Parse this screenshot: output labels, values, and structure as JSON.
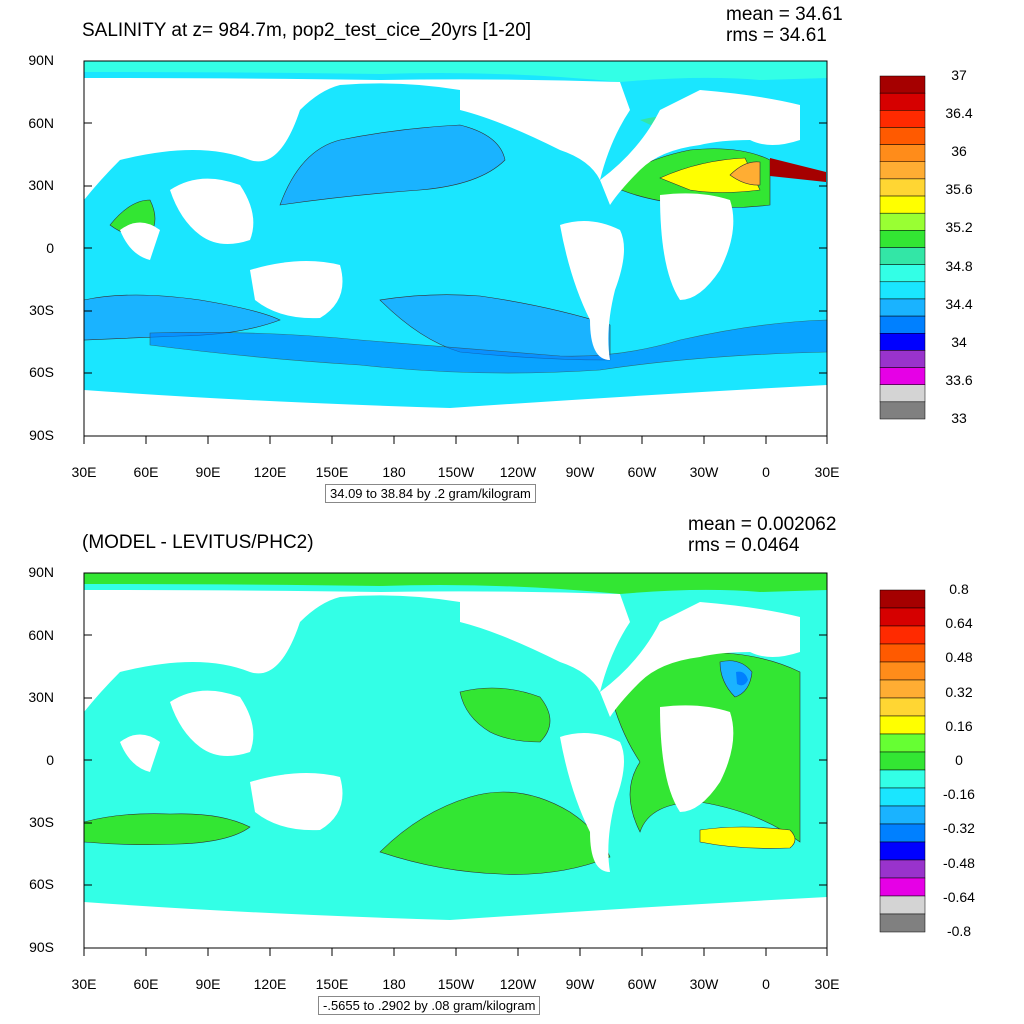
{
  "panels": [
    {
      "title": "SALINITY at z= 984.7m, pop2_test_cice_20yrs [1-20]",
      "mean_label": "mean = 34.61",
      "rms_label": "rms = 34.61",
      "contour_note": "34.09 to 38.84 by .2 gram/kilogram",
      "y_ticks": [
        "90N",
        "60N",
        "30N",
        "0",
        "30S",
        "60S",
        "90S"
      ],
      "x_ticks": [
        "30E",
        "60E",
        "90E",
        "120E",
        "150E",
        "180",
        "150W",
        "120W",
        "90W",
        "60W",
        "30W",
        "0",
        "30E"
      ],
      "colorbar": {
        "labels": [
          "37",
          "36.4",
          "36",
          "35.6",
          "35.2",
          "34.8",
          "34.4",
          "34",
          "33.6",
          "33"
        ],
        "colors": [
          "#a50000",
          "#d60000",
          "#ff2a00",
          "#ff5a00",
          "#ff8c1a",
          "#ffad33",
          "#ffd633",
          "#ffff00",
          "#99ff33",
          "#33e633",
          "#33e6a6",
          "#33ffe6",
          "#1ae6ff",
          "#1ab3ff",
          "#0080ff",
          "#0000ff",
          "#9933cc",
          "#e600e6",
          "#d4d4d4",
          "#808080"
        ]
      }
    },
    {
      "title": "(MODEL - LEVITUS/PHC2)",
      "mean_label": "mean = 0.002062",
      "rms_label": "rms = 0.0464",
      "contour_note": "-.5655 to .2902 by .08 gram/kilogram",
      "y_ticks": [
        "90N",
        "60N",
        "30N",
        "0",
        "30S",
        "60S",
        "90S"
      ],
      "x_ticks": [
        "30E",
        "60E",
        "90E",
        "120E",
        "150E",
        "180",
        "150W",
        "120W",
        "90W",
        "60W",
        "30W",
        "0",
        "30E"
      ],
      "colorbar": {
        "labels": [
          "0.8",
          "0.64",
          "0.48",
          "0.32",
          "0.16",
          "0",
          "-0.16",
          "-0.32",
          "-0.48",
          "-0.64",
          "-0.8"
        ],
        "colors": [
          "#a50000",
          "#d60000",
          "#ff2a00",
          "#ff5a00",
          "#ff8c1a",
          "#ffad33",
          "#ffd633",
          "#ffff00",
          "#66ff33",
          "#33e633",
          "#33ffe6",
          "#1ae6ff",
          "#1ab3ff",
          "#0080ff",
          "#0000ff",
          "#9933cc",
          "#e600e6",
          "#d4d4d4",
          "#808080"
        ]
      }
    }
  ]
}
